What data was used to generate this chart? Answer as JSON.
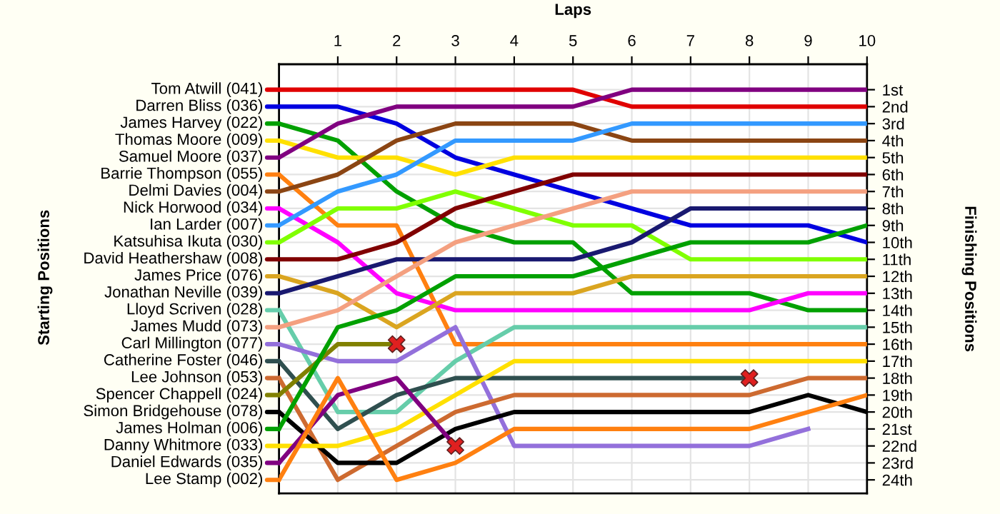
{
  "chart_data": {
    "type": "line",
    "xlabel": "Laps",
    "ylabel": "Finishing Positions",
    "annotations": [
      "Starting Positions"
    ],
    "xlim": [
      0,
      10
    ],
    "xticks": [
      1,
      2,
      3,
      4,
      5,
      6,
      7,
      8,
      9,
      10
    ],
    "ylim": [
      24.8,
      -0.5
    ],
    "yticks": [
      {
        "value": 1,
        "label": "1st"
      },
      {
        "value": 2,
        "label": "2nd"
      },
      {
        "value": 3,
        "label": "3rd"
      },
      {
        "value": 4,
        "label": "4th"
      },
      {
        "value": 5,
        "label": "5th"
      },
      {
        "value": 6,
        "label": "6th"
      },
      {
        "value": 7,
        "label": "7th"
      },
      {
        "value": 8,
        "label": "8th"
      },
      {
        "value": 9,
        "label": "9th"
      },
      {
        "value": 10,
        "label": "10th"
      },
      {
        "value": 11,
        "label": "11th"
      },
      {
        "value": 12,
        "label": "12th"
      },
      {
        "value": 13,
        "label": "13th"
      },
      {
        "value": 14,
        "label": "14th"
      },
      {
        "value": 15,
        "label": "15th"
      },
      {
        "value": 16,
        "label": "16th"
      },
      {
        "value": 17,
        "label": "17th"
      },
      {
        "value": 18,
        "label": "18th"
      },
      {
        "value": 19,
        "label": "19th"
      },
      {
        "value": 20,
        "label": "20th"
      },
      {
        "value": 21,
        "label": "21st"
      },
      {
        "value": 22,
        "label": "22nd"
      },
      {
        "value": 23,
        "label": "23rd"
      },
      {
        "value": 24,
        "label": "24th"
      }
    ],
    "x": [
      0,
      1,
      2,
      3,
      4,
      5,
      6,
      7,
      8,
      9,
      10
    ],
    "grid": true,
    "legend": "left",
    "series": [
      {
        "name": "Tom Atwill (041)",
        "color": "#e00000",
        "values": [
          1,
          1,
          1,
          1,
          1,
          1,
          2,
          2,
          2,
          2,
          2
        ]
      },
      {
        "name": "Darren Bliss (036)",
        "color": "#0000e0",
        "values": [
          2,
          2,
          3,
          5,
          6,
          7,
          8,
          9,
          9,
          9,
          10
        ]
      },
      {
        "name": "James Harvey (022)",
        "color": "#00a000",
        "values": [
          3,
          4,
          7,
          9,
          10,
          10,
          13,
          13,
          13,
          14,
          14
        ]
      },
      {
        "name": "Thomas Moore (009)",
        "color": "#ffe000",
        "values": [
          4,
          5,
          5,
          6,
          5,
          5,
          5,
          5,
          5,
          5,
          5
        ]
      },
      {
        "name": "Samuel Moore (037)",
        "color": "#800080",
        "values": [
          5,
          3,
          2,
          2,
          2,
          2,
          1,
          1,
          1,
          1,
          1
        ]
      },
      {
        "name": "Barrie Thompson (055)",
        "color": "#ff8010",
        "values": [
          6,
          9,
          9,
          16,
          16,
          16,
          16,
          16,
          16,
          16,
          16
        ]
      },
      {
        "name": "Delmi Davies (004)",
        "color": "#8b4513",
        "values": [
          7,
          6,
          4,
          3,
          3,
          3,
          4,
          4,
          4,
          4,
          4
        ]
      },
      {
        "name": "Nick Horwood (034)",
        "color": "#ff00ff",
        "values": [
          8,
          10,
          13,
          14,
          14,
          14,
          14,
          14,
          14,
          13,
          13
        ]
      },
      {
        "name": "Ian Larder (007)",
        "color": "#3399ff",
        "values": [
          9,
          7,
          6,
          4,
          4,
          4,
          3,
          3,
          3,
          3,
          3
        ]
      },
      {
        "name": "Katsuhisa Ikuta (030)",
        "color": "#80ff00",
        "values": [
          10,
          8,
          8,
          7,
          8,
          9,
          9,
          11,
          11,
          11,
          11
        ]
      },
      {
        "name": "David Heathershaw (008)",
        "color": "#800000",
        "values": [
          11,
          11,
          10,
          8,
          7,
          6,
          6,
          6,
          6,
          6,
          6
        ]
      },
      {
        "name": "James Price (076)",
        "color": "#daa520",
        "values": [
          12,
          13,
          15,
          13,
          13,
          13,
          12,
          12,
          12,
          12,
          12
        ]
      },
      {
        "name": "Jonathan Neville (039)",
        "color": "#191970",
        "values": [
          13,
          12,
          11,
          11,
          11,
          11,
          10,
          8,
          8,
          8,
          8
        ]
      },
      {
        "name": "Lloyd Scriven (028)",
        "color": "#66cdaa",
        "values": [
          14,
          20,
          20,
          17,
          15,
          15,
          15,
          15,
          15,
          15,
          15
        ]
      },
      {
        "name": "James Mudd (073)",
        "color": "#f4a080",
        "values": [
          15,
          14,
          12,
          10,
          9,
          8,
          7,
          7,
          7,
          7,
          7
        ]
      },
      {
        "name": "Carl Millington (077)",
        "color": "#9370db",
        "values": [
          16,
          17,
          17,
          15,
          22,
          22,
          22,
          22,
          22,
          21,
          null
        ]
      },
      {
        "name": "Catherine Foster (046)",
        "color": "#2f4f4f",
        "values": [
          17,
          21,
          19,
          18,
          18,
          18,
          18,
          18,
          18,
          null,
          null
        ]
      },
      {
        "name": "Lee Johnson (053)",
        "color": "#cd6a30",
        "values": [
          18,
          24,
          22,
          20,
          19,
          19,
          19,
          19,
          19,
          18,
          18
        ]
      },
      {
        "name": "Spencer Chappell (024)",
        "color": "#808000",
        "values": [
          19,
          16,
          16,
          null,
          null,
          null,
          null,
          null,
          null,
          null,
          null
        ]
      },
      {
        "name": "Simon Bridgehouse (078)",
        "color": "#000000",
        "values": [
          20,
          23,
          23,
          21,
          20,
          20,
          20,
          20,
          20,
          19,
          20
        ]
      },
      {
        "name": "James Holman (006)",
        "color": "#00a000",
        "values": [
          21,
          15,
          14,
          12,
          12,
          12,
          11,
          10,
          10,
          10,
          9
        ]
      },
      {
        "name": "Danny Whitmore (033)",
        "color": "#ffe000",
        "values": [
          22,
          22,
          21,
          19,
          17,
          17,
          17,
          17,
          17,
          17,
          17
        ]
      },
      {
        "name": "Daniel Edwards (035)",
        "color": "#800080",
        "values": [
          23,
          19,
          18,
          22,
          null,
          null,
          null,
          null,
          null,
          null,
          null
        ]
      },
      {
        "name": "Lee Stamp (002)",
        "color": "#ff8010",
        "values": [
          24,
          18,
          24,
          23,
          21,
          21,
          21,
          21,
          21,
          20,
          19
        ]
      },
      {
        "type": "scatter",
        "marker": "cross",
        "color": "#e02020",
        "x": [
          2,
          3,
          8
        ],
        "values": [
          16,
          22,
          18
        ]
      }
    ]
  }
}
